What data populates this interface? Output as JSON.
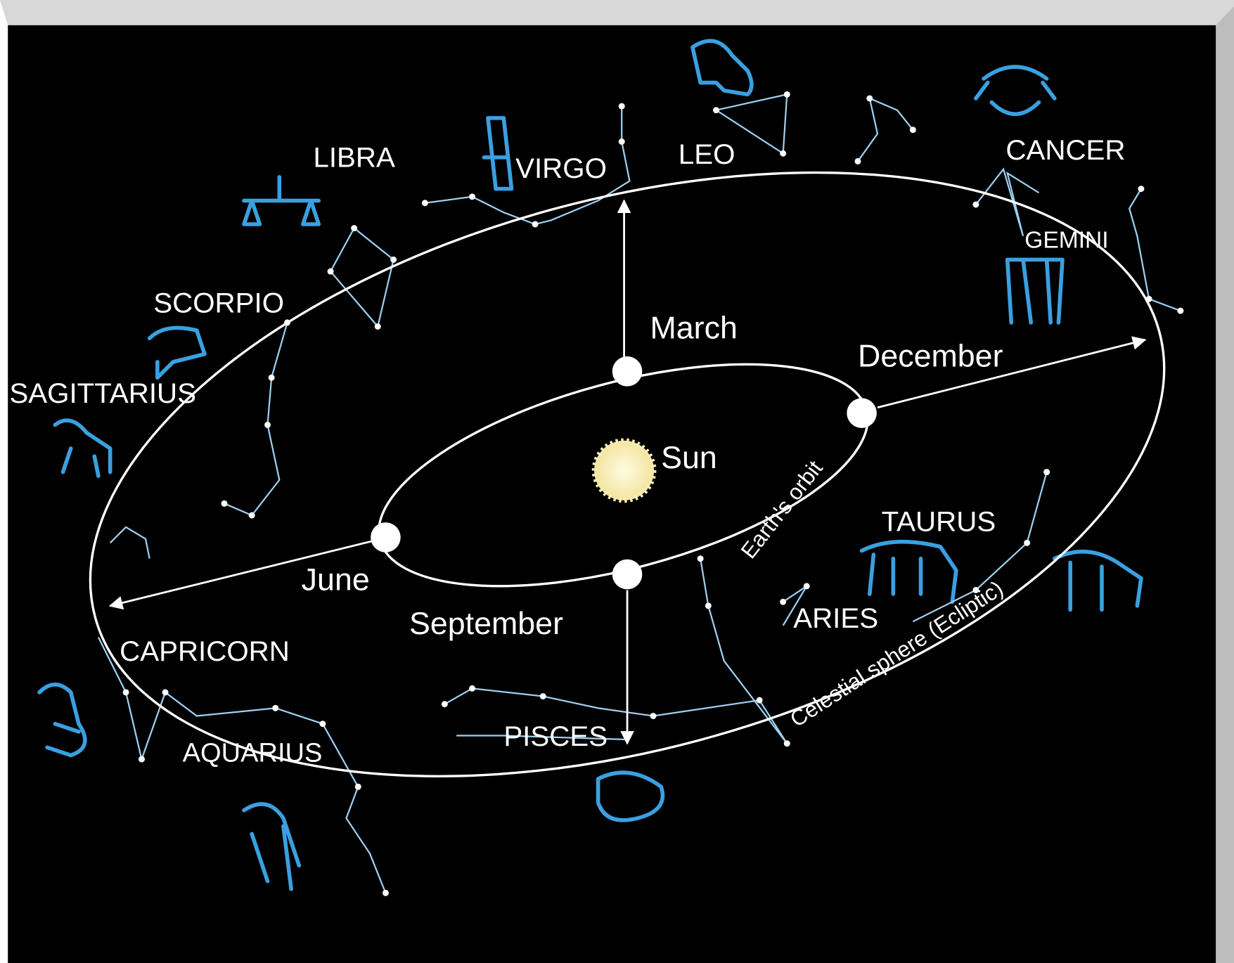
{
  "center": {
    "label": "Sun"
  },
  "orbit_label": "Earth's orbit",
  "ecliptic_label": "Celestial sphere (Ecliptic)",
  "months": [
    "March",
    "December",
    "June",
    "September"
  ],
  "constellations": [
    "LIBRA",
    "VIRGO",
    "LEO",
    "CANCER",
    "GEMINI",
    "SCORPIO",
    "SAGITTARIUS",
    "TAURUS",
    "ARIES",
    "CAPRICORN",
    "PISCES",
    "AQUARIUS"
  ]
}
